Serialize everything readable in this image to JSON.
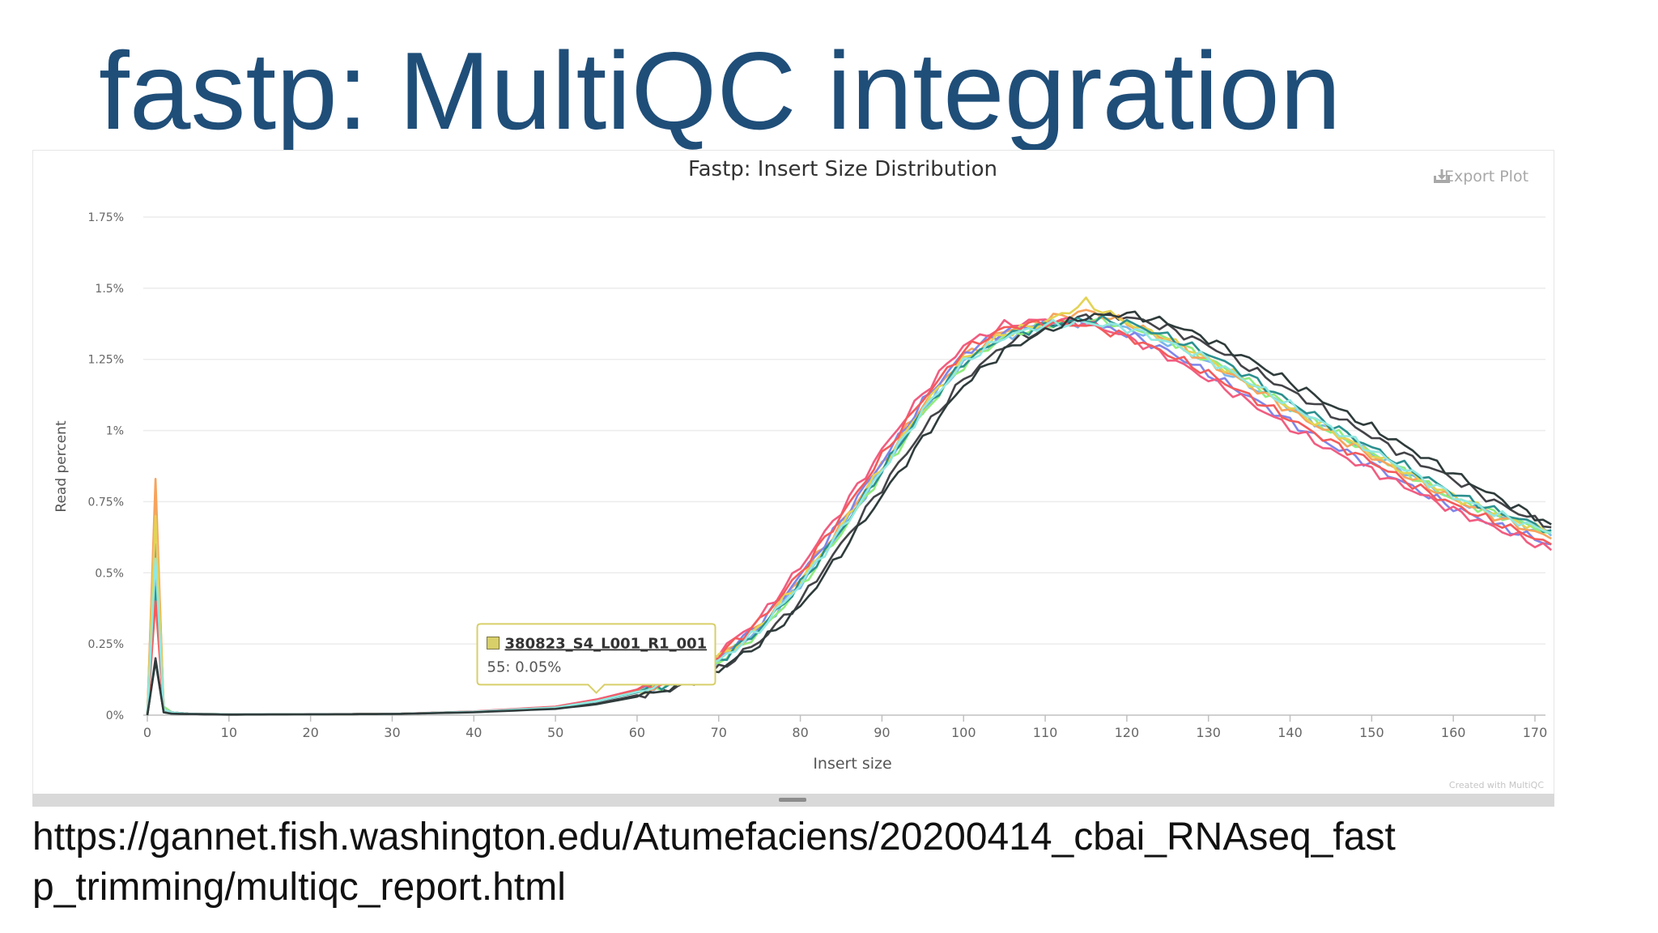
{
  "slide": {
    "title": "fastp: MultiQC integration",
    "url_line1": "https://gannet.fish.washington.edu/Atumefaciens/20200414_cbai_RNAseq_fast",
    "url_line2": "p_trimming/multiqc_report.html"
  },
  "chart_data": {
    "type": "line",
    "title": "Fastp: Insert Size Distribution",
    "xlabel": "Insert size",
    "ylabel": "Read percent",
    "xlim": [
      0,
      172
    ],
    "ylim": [
      0,
      1.75
    ],
    "x_ticks": [
      "0",
      "10",
      "20",
      "30",
      "40",
      "50",
      "60",
      "70",
      "80",
      "90",
      "100",
      "110",
      "120",
      "130",
      "140",
      "150",
      "160",
      "170"
    ],
    "y_ticks": [
      "0%",
      "0.25%",
      "0.5%",
      "0.75%",
      "1%",
      "1.25%",
      "1.5%",
      "1.75%"
    ],
    "grid": true,
    "export_label": "Export Plot",
    "credit": "Created with MultiQC",
    "tooltip": {
      "sample": "380823_S4_L001_R1_001",
      "text": "55: 0.05%",
      "x": 55,
      "y": 0.05,
      "color": "#d8cf6a"
    },
    "series": [
      {
        "color": "#7cb5ec",
        "x": [
          0,
          1,
          2,
          3,
          5,
          10,
          20,
          30,
          40,
          50,
          55,
          60,
          65,
          70,
          75,
          80,
          85,
          90,
          95,
          100,
          105,
          110,
          115,
          120,
          125,
          130,
          135,
          140,
          145,
          150,
          155,
          160,
          165,
          172
        ],
        "y": [
          0,
          0.8,
          0.02,
          0.01,
          0.005,
          0.003,
          0.003,
          0.004,
          0.012,
          0.028,
          0.05,
          0.08,
          0.12,
          0.19,
          0.3,
          0.46,
          0.65,
          0.86,
          1.07,
          1.24,
          1.33,
          1.37,
          1.38,
          1.36,
          1.31,
          1.24,
          1.16,
          1.08,
          1.0,
          0.92,
          0.84,
          0.76,
          0.71,
          0.63
        ]
      },
      {
        "color": "#434348",
        "x": [
          0,
          1,
          2,
          3,
          5,
          10,
          20,
          30,
          40,
          50,
          55,
          60,
          65,
          70,
          75,
          80,
          85,
          90,
          95,
          100,
          105,
          110,
          115,
          120,
          125,
          130,
          135,
          140,
          145,
          150,
          155,
          160,
          165,
          172
        ],
        "y": [
          0,
          0.2,
          0.01,
          0.005,
          0.004,
          0.002,
          0.003,
          0.004,
          0.011,
          0.024,
          0.04,
          0.07,
          0.1,
          0.16,
          0.26,
          0.4,
          0.6,
          0.8,
          1.0,
          1.18,
          1.3,
          1.36,
          1.4,
          1.4,
          1.36,
          1.3,
          1.22,
          1.14,
          1.06,
          0.98,
          0.9,
          0.83,
          0.75,
          0.66
        ]
      },
      {
        "color": "#90ed7d",
        "x": [
          0,
          1,
          2,
          3,
          5,
          10,
          20,
          30,
          40,
          50,
          55,
          60,
          65,
          70,
          75,
          80,
          85,
          90,
          95,
          100,
          105,
          110,
          115,
          120,
          125,
          130,
          135,
          140,
          145,
          150,
          155,
          160,
          165,
          172
        ],
        "y": [
          0,
          0.74,
          0.03,
          0.01,
          0.005,
          0.003,
          0.003,
          0.004,
          0.012,
          0.027,
          0.05,
          0.08,
          0.12,
          0.19,
          0.29,
          0.45,
          0.64,
          0.85,
          1.06,
          1.23,
          1.33,
          1.37,
          1.39,
          1.37,
          1.32,
          1.25,
          1.17,
          1.08,
          1.0,
          0.92,
          0.84,
          0.76,
          0.71,
          0.64
        ]
      },
      {
        "color": "#f7a35c",
        "x": [
          0,
          1,
          2,
          3,
          5,
          10,
          20,
          30,
          40,
          50,
          55,
          60,
          65,
          70,
          75,
          80,
          85,
          90,
          95,
          100,
          105,
          110,
          115,
          120,
          125,
          130,
          135,
          140,
          145,
          150,
          155,
          160,
          165,
          172
        ],
        "y": [
          0,
          0.83,
          0.02,
          0.01,
          0.005,
          0.003,
          0.003,
          0.004,
          0.012,
          0.028,
          0.05,
          0.08,
          0.13,
          0.2,
          0.31,
          0.48,
          0.67,
          0.88,
          1.09,
          1.26,
          1.35,
          1.39,
          1.42,
          1.38,
          1.32,
          1.24,
          1.16,
          1.07,
          0.99,
          0.91,
          0.83,
          0.76,
          0.7,
          0.62
        ]
      },
      {
        "color": "#8085e9",
        "x": [
          0,
          1,
          2,
          3,
          5,
          10,
          20,
          30,
          40,
          50,
          55,
          60,
          65,
          70,
          75,
          80,
          85,
          90,
          95,
          100,
          105,
          110,
          115,
          120,
          125,
          130,
          135,
          140,
          145,
          150,
          155,
          160,
          165,
          172
        ],
        "y": [
          0,
          0.6,
          0.02,
          0.01,
          0.005,
          0.003,
          0.003,
          0.004,
          0.012,
          0.028,
          0.05,
          0.09,
          0.13,
          0.2,
          0.32,
          0.49,
          0.68,
          0.89,
          1.1,
          1.27,
          1.35,
          1.38,
          1.38,
          1.34,
          1.28,
          1.2,
          1.12,
          1.03,
          0.95,
          0.88,
          0.8,
          0.73,
          0.67,
          0.6
        ]
      },
      {
        "color": "#f15c80",
        "x": [
          0,
          1,
          2,
          3,
          5,
          10,
          20,
          30,
          40,
          50,
          55,
          60,
          65,
          70,
          75,
          80,
          85,
          90,
          95,
          100,
          105,
          110,
          115,
          120,
          125,
          130,
          135,
          140,
          145,
          150,
          155,
          160,
          165,
          172
        ],
        "y": [
          0,
          0.5,
          0.02,
          0.01,
          0.005,
          0.003,
          0.003,
          0.004,
          0.013,
          0.03,
          0.055,
          0.09,
          0.14,
          0.22,
          0.34,
          0.52,
          0.72,
          0.93,
          1.13,
          1.3,
          1.37,
          1.39,
          1.38,
          1.33,
          1.26,
          1.18,
          1.1,
          1.01,
          0.93,
          0.86,
          0.79,
          0.72,
          0.66,
          0.58
        ]
      },
      {
        "color": "#e4d354",
        "x": [
          0,
          1,
          2,
          3,
          5,
          10,
          20,
          30,
          40,
          50,
          55,
          60,
          65,
          70,
          75,
          80,
          85,
          90,
          95,
          100,
          105,
          110,
          115,
          120,
          125,
          130,
          135,
          140,
          145,
          150,
          155,
          160,
          165,
          172
        ],
        "y": [
          0,
          0.7,
          0.02,
          0.01,
          0.005,
          0.003,
          0.003,
          0.004,
          0.012,
          0.028,
          0.05,
          0.085,
          0.13,
          0.2,
          0.31,
          0.47,
          0.66,
          0.87,
          1.08,
          1.25,
          1.34,
          1.38,
          1.45,
          1.38,
          1.32,
          1.25,
          1.17,
          1.08,
          1.0,
          0.92,
          0.84,
          0.77,
          0.71,
          0.64
        ]
      },
      {
        "color": "#2b908f",
        "x": [
          0,
          1,
          2,
          3,
          5,
          10,
          20,
          30,
          40,
          50,
          55,
          60,
          65,
          70,
          75,
          80,
          85,
          90,
          95,
          100,
          105,
          110,
          115,
          120,
          125,
          130,
          135,
          140,
          145,
          150,
          155,
          160,
          165,
          172
        ],
        "y": [
          0,
          0.45,
          0.02,
          0.01,
          0.005,
          0.003,
          0.003,
          0.004,
          0.012,
          0.027,
          0.048,
          0.08,
          0.12,
          0.19,
          0.3,
          0.46,
          0.65,
          0.86,
          1.07,
          1.24,
          1.33,
          1.37,
          1.39,
          1.38,
          1.33,
          1.27,
          1.19,
          1.1,
          1.02,
          0.94,
          0.86,
          0.78,
          0.72,
          0.65
        ]
      },
      {
        "color": "#f45b5b",
        "x": [
          0,
          1,
          2,
          3,
          5,
          10,
          20,
          30,
          40,
          50,
          55,
          60,
          65,
          70,
          75,
          80,
          85,
          90,
          95,
          100,
          105,
          110,
          115,
          120,
          125,
          130,
          135,
          140,
          145,
          150,
          155,
          160,
          165,
          172
        ],
        "y": [
          0,
          0.4,
          0.02,
          0.01,
          0.005,
          0.003,
          0.003,
          0.004,
          0.012,
          0.029,
          0.052,
          0.088,
          0.13,
          0.21,
          0.33,
          0.5,
          0.7,
          0.91,
          1.11,
          1.28,
          1.36,
          1.38,
          1.37,
          1.33,
          1.27,
          1.2,
          1.12,
          1.04,
          0.96,
          0.89,
          0.81,
          0.74,
          0.68,
          0.6
        ]
      },
      {
        "color": "#91e8e1",
        "x": [
          0,
          1,
          2,
          3,
          5,
          10,
          20,
          30,
          40,
          50,
          55,
          60,
          65,
          70,
          75,
          80,
          85,
          90,
          95,
          100,
          105,
          110,
          115,
          120,
          125,
          130,
          135,
          140,
          145,
          150,
          155,
          160,
          165,
          172
        ],
        "y": [
          0,
          0.55,
          0.02,
          0.01,
          0.005,
          0.003,
          0.003,
          0.004,
          0.012,
          0.027,
          0.049,
          0.082,
          0.12,
          0.19,
          0.3,
          0.46,
          0.65,
          0.86,
          1.07,
          1.24,
          1.33,
          1.37,
          1.38,
          1.36,
          1.31,
          1.25,
          1.17,
          1.09,
          1.01,
          0.93,
          0.85,
          0.77,
          0.71,
          0.64
        ]
      },
      {
        "color": "#2f3b3b",
        "x": [
          0,
          1,
          2,
          3,
          5,
          10,
          20,
          30,
          40,
          50,
          55,
          60,
          65,
          70,
          75,
          80,
          85,
          90,
          95,
          100,
          105,
          110,
          115,
          120,
          125,
          130,
          135,
          140,
          145,
          150,
          155,
          160,
          165,
          172
        ],
        "y": [
          0,
          0.19,
          0.01,
          0.005,
          0.004,
          0.002,
          0.003,
          0.004,
          0.01,
          0.022,
          0.038,
          0.065,
          0.1,
          0.16,
          0.25,
          0.38,
          0.57,
          0.77,
          0.97,
          1.16,
          1.28,
          1.35,
          1.4,
          1.41,
          1.38,
          1.32,
          1.25,
          1.17,
          1.09,
          1.01,
          0.93,
          0.85,
          0.77,
          0.67
        ]
      }
    ]
  }
}
